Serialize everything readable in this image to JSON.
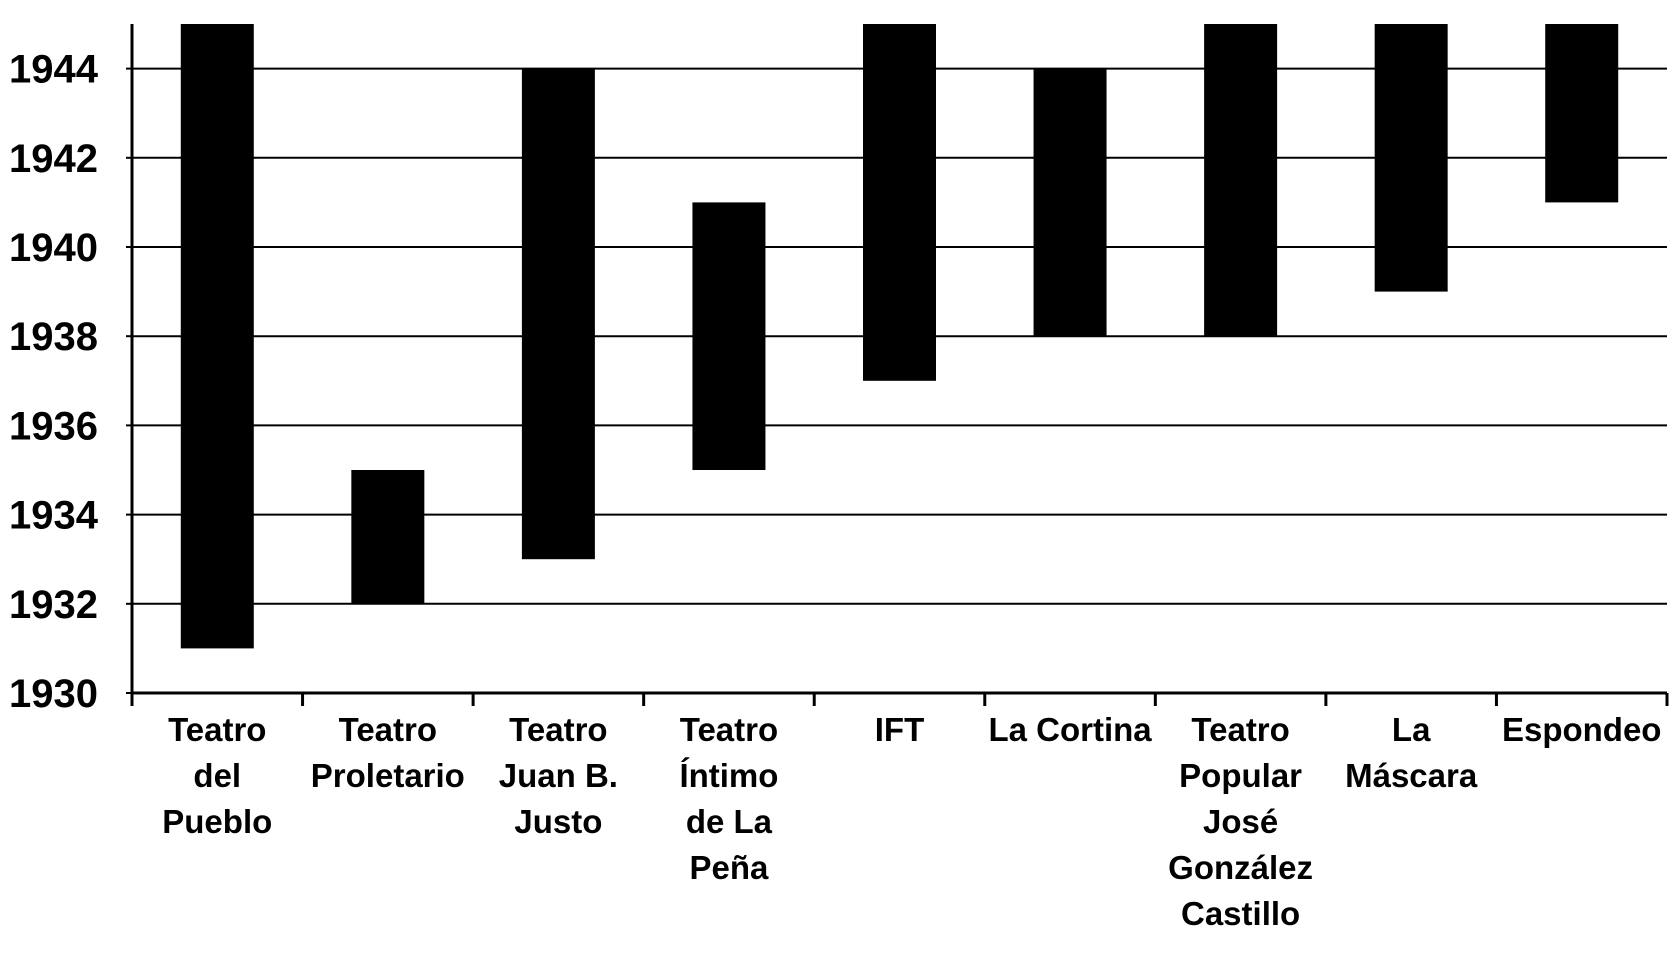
{
  "chart_data": {
    "type": "bar",
    "orientation": "vertical-floating-range",
    "title": "",
    "xlabel": "",
    "ylabel": "",
    "ylim": [
      1930,
      1945
    ],
    "yticks": [
      1930,
      1932,
      1934,
      1936,
      1938,
      1940,
      1942,
      1944
    ],
    "grid": true,
    "categories": [
      "Teatro del Pueblo",
      "Teatro Proletario",
      "Teatro Juan B. Justo",
      "Teatro Íntimo de La Peña",
      "IFT",
      "La Cortina",
      "Teatro Popular José González Castillo",
      "La Máscara",
      "Espondeo"
    ],
    "category_lines": [
      [
        "Teatro",
        "del",
        "Pueblo"
      ],
      [
        "Teatro",
        "Proletario"
      ],
      [
        "Teatro",
        "Juan B.",
        "Justo"
      ],
      [
        "Teatro",
        "Íntimo",
        "de La",
        "Peña"
      ],
      [
        "IFT"
      ],
      [
        "La Cortina"
      ],
      [
        "Teatro",
        "Popular",
        "José",
        "González",
        "Castillo"
      ],
      [
        "La",
        "Máscara"
      ],
      [
        "Espondeo"
      ]
    ],
    "ranges": [
      [
        1931,
        1945
      ],
      [
        1932,
        1935
      ],
      [
        1933,
        1944
      ],
      [
        1935,
        1941
      ],
      [
        1937,
        1945
      ],
      [
        1938,
        1944
      ],
      [
        1938,
        1945
      ],
      [
        1939,
        1945
      ],
      [
        1941,
        1945
      ]
    ],
    "colors": {
      "bar": "#000000",
      "grid": "#000000",
      "background": "#ffffff"
    }
  }
}
